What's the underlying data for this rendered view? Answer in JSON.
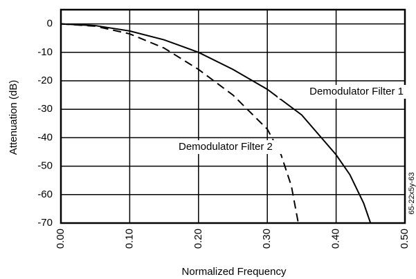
{
  "chart_data": {
    "type": "line",
    "xlabel": "Normalized Frequency",
    "ylabel": "Attenuation (dB)",
    "xlim": [
      0,
      0.5
    ],
    "ylim": [
      -70,
      5
    ],
    "xticks": [
      {
        "value": 0,
        "label": "0.00"
      },
      {
        "value": 0.1,
        "label": "0.10"
      },
      {
        "value": 0.2,
        "label": "0.20"
      },
      {
        "value": 0.3,
        "label": "0.30"
      },
      {
        "value": 0.4,
        "label": "0.40"
      },
      {
        "value": 0.5,
        "label": "0.50"
      }
    ],
    "yticks": [
      0,
      -10,
      -20,
      -30,
      -40,
      -50,
      -60,
      -70
    ],
    "grid": true,
    "series": [
      {
        "name": "Demodulator Filter 1",
        "color": "#000000",
        "style": "solid",
        "x": [
          0,
          0.05,
          0.1,
          0.15,
          0.2,
          0.25,
          0.3,
          0.35,
          0.4,
          0.42,
          0.44,
          0.45
        ],
        "values": [
          0,
          -0.6,
          -2.5,
          -5.6,
          -10,
          -16,
          -23,
          -32,
          -46,
          -53,
          -63,
          -70
        ]
      },
      {
        "name": "Demodulator Filter 2",
        "color": "#000000",
        "style": "dashed",
        "x": [
          0,
          0.05,
          0.1,
          0.15,
          0.2,
          0.25,
          0.3,
          0.32,
          0.335,
          0.345
        ],
        "values": [
          0,
          -0.8,
          -3.5,
          -8.5,
          -16,
          -25,
          -37,
          -46,
          -57,
          -70
        ]
      }
    ],
    "annotations": [
      "65-22x5y-63"
    ]
  }
}
